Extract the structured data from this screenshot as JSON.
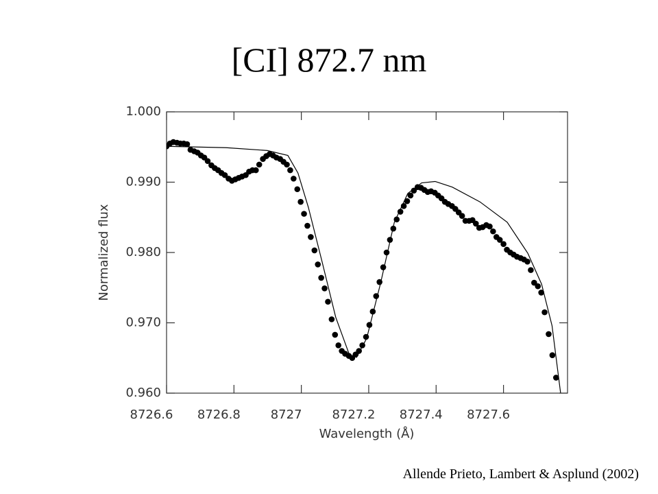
{
  "chart_data": {
    "type": "scatter",
    "title": "[CI] 872.7 nm",
    "source": "Allende Prieto, Lambert & Asplund (2002)",
    "xlabel": "Wavelength (Å)",
    "ylabel": "Normalized flux",
    "xlim": [
      8726.6,
      8727.79
    ],
    "ylim": [
      0.96,
      1.0
    ],
    "xticks": [
      8726.6,
      8726.8,
      8727.0,
      8727.2,
      8727.4,
      8727.6
    ],
    "yticks": [
      {
        "value": 0.96,
        "label": "0.960"
      },
      {
        "value": 0.97,
        "label": "0.970"
      },
      {
        "value": 0.98,
        "label": "0.980"
      },
      {
        "value": 0.99,
        "label": "0.990"
      },
      {
        "value": 1.0,
        "label": "1.000"
      }
    ],
    "series": [
      {
        "type": "scatter",
        "color": "#000000",
        "x": [
          8726.6,
          8726.61,
          8726.62,
          8726.631,
          8726.641,
          8726.651,
          8726.661,
          8726.671,
          8726.682,
          8726.692,
          8726.702,
          8726.712,
          8726.722,
          8726.733,
          8726.743,
          8726.753,
          8726.763,
          8726.773,
          8726.784,
          8726.794,
          8726.804,
          8726.814,
          8726.824,
          8726.835,
          8726.845,
          8726.855,
          8726.865,
          8726.875,
          8726.886,
          8726.896,
          8726.906,
          8726.916,
          8726.926,
          8726.937,
          8726.947,
          8726.957,
          8726.967,
          8726.977,
          8726.988,
          8726.998,
          8727.008,
          8727.018,
          8727.028,
          8727.039,
          8727.049,
          8727.059,
          8727.069,
          8727.079,
          8727.09,
          8727.1,
          8727.11,
          8727.12,
          8727.13,
          8727.141,
          8727.151,
          8727.161,
          8727.171,
          8727.181,
          8727.192,
          8727.202,
          8727.212,
          8727.222,
          8727.232,
          8727.243,
          8727.253,
          8727.263,
          8727.273,
          8727.283,
          8727.294,
          8727.304,
          8727.314,
          8727.324,
          8727.334,
          8727.345,
          8727.355,
          8727.365,
          8727.375,
          8727.385,
          8727.396,
          8727.406,
          8727.416,
          8727.426,
          8727.436,
          8727.447,
          8727.457,
          8727.467,
          8727.477,
          8727.487,
          8727.498,
          8727.508,
          8727.518,
          8727.528,
          8727.538,
          8727.549,
          8727.559,
          8727.569,
          8727.579,
          8727.589,
          8727.6,
          8727.61,
          8727.62,
          8727.63,
          8727.64,
          8727.651,
          8727.661,
          8727.671,
          8727.681,
          8727.691,
          8727.702,
          8727.712,
          8727.722,
          8727.734,
          8727.745,
          8727.756
        ],
        "values": [
          0.9951,
          0.9955,
          0.9957,
          0.9956,
          0.9955,
          0.9955,
          0.9954,
          0.9946,
          0.9944,
          0.9942,
          0.9938,
          0.9935,
          0.993,
          0.9924,
          0.992,
          0.9917,
          0.9913,
          0.991,
          0.9905,
          0.9902,
          0.9904,
          0.9906,
          0.9908,
          0.991,
          0.9915,
          0.9917,
          0.9917,
          0.9925,
          0.9933,
          0.9937,
          0.994,
          0.9938,
          0.9935,
          0.9933,
          0.9929,
          0.9925,
          0.9917,
          0.9905,
          0.989,
          0.9872,
          0.9855,
          0.9838,
          0.9822,
          0.9803,
          0.9783,
          0.9764,
          0.9749,
          0.973,
          0.9705,
          0.9683,
          0.9668,
          0.966,
          0.9656,
          0.9653,
          0.965,
          0.9655,
          0.966,
          0.9668,
          0.968,
          0.9697,
          0.9716,
          0.9738,
          0.9758,
          0.9779,
          0.98,
          0.9818,
          0.9834,
          0.9847,
          0.9858,
          0.9866,
          0.9873,
          0.9881,
          0.9888,
          0.9893,
          0.9892,
          0.9889,
          0.9886,
          0.9887,
          0.9885,
          0.9881,
          0.9877,
          0.9872,
          0.9869,
          0.9866,
          0.9862,
          0.9857,
          0.9852,
          0.9845,
          0.9845,
          0.9846,
          0.9841,
          0.9835,
          0.9836,
          0.9839,
          0.9837,
          0.983,
          0.9822,
          0.9818,
          0.9812,
          0.9804,
          0.98,
          0.9797,
          0.9794,
          0.9792,
          0.979,
          0.9787,
          0.9775,
          0.9757,
          0.9752,
          0.9743,
          0.9715,
          0.9684,
          0.9654,
          0.9622
        ]
      },
      {
        "type": "line",
        "color": "#000000",
        "x": [
          8726.6,
          8726.777,
          8726.899,
          8726.96,
          8726.99,
          8727.021,
          8727.062,
          8727.102,
          8727.143,
          8727.164,
          8727.194,
          8727.235,
          8727.276,
          8727.316,
          8727.357,
          8727.397,
          8727.448,
          8727.53,
          8727.611,
          8727.672,
          8727.713,
          8727.744,
          8727.77
        ],
        "values": [
          0.9951,
          0.9949,
          0.9945,
          0.9938,
          0.9913,
          0.9864,
          0.9786,
          0.9708,
          0.9654,
          0.9651,
          0.9678,
          0.9756,
          0.9843,
          0.9884,
          0.9899,
          0.9901,
          0.9893,
          0.9872,
          0.9843,
          0.9799,
          0.9755,
          0.9696,
          0.9598
        ]
      }
    ]
  }
}
